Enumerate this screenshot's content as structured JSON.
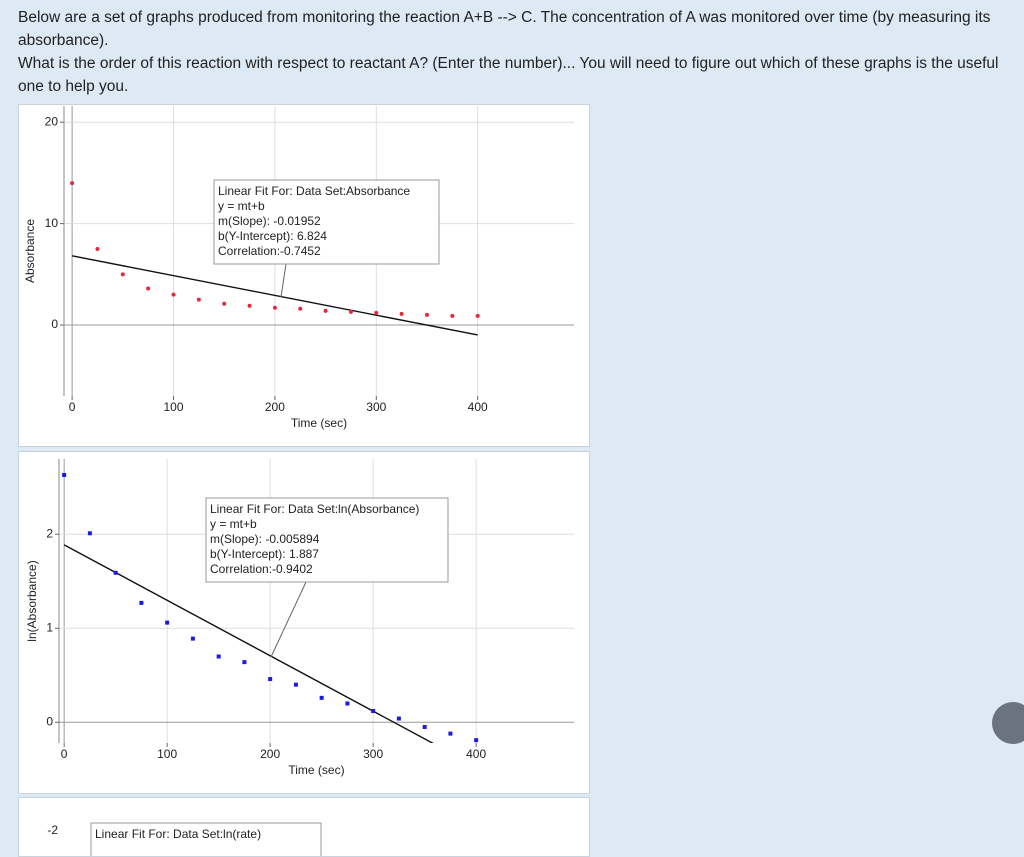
{
  "question": [
    "Below are a set of graphs produced from monitoring the reaction A+B --> C. The concentration of A was monitored over time (by measuring its absorbance).",
    "What is the order of this reaction with respect to reactant A? (Enter the number)... You will need to figure out which of these graphs is the useful one to help you."
  ],
  "chart_data": [
    {
      "type": "scatter",
      "xlabel": "Time (sec)",
      "ylabel": "Absorbance",
      "marker": "circle",
      "x": [
        0,
        25,
        50,
        75,
        100,
        125,
        150,
        175,
        200,
        225,
        250,
        275,
        300,
        325,
        350,
        375,
        400
      ],
      "series": [
        {
          "name": "Absorbance",
          "color": "#e8283a",
          "values": [
            14.0,
            7.5,
            5.0,
            3.6,
            3.0,
            2.5,
            2.1,
            1.9,
            1.7,
            1.6,
            1.4,
            1.3,
            1.2,
            1.1,
            1.0,
            0.9,
            0.9
          ]
        }
      ],
      "xlim": [
        -8,
        495
      ],
      "xticks": [
        0,
        100,
        200,
        300,
        400
      ],
      "ylim": [
        -7,
        21.6
      ],
      "yticks": [
        0,
        10,
        20
      ],
      "grid": true,
      "fit": {
        "title": "Linear Fit For:  Data Set:Absorbance",
        "equation": "y = mt+b",
        "slope_label": "m(Slope): ",
        "slope": -0.01952,
        "intercept_label": "b(Y-Intercept): ",
        "intercept": 6.824,
        "correlation_label": "Correlation:",
        "correlation": -0.7452
      }
    },
    {
      "type": "scatter",
      "xlabel": "Time (sec)",
      "ylabel": "ln(Absorbance)",
      "marker": "square",
      "x": [
        0,
        25,
        50,
        75,
        100,
        125,
        150,
        175,
        200,
        225,
        250,
        275,
        300,
        325,
        350,
        375,
        400
      ],
      "series": [
        {
          "name": "ln(Absorbance)",
          "color": "#1a1ae6",
          "values": [
            2.63,
            2.01,
            1.59,
            1.27,
            1.06,
            0.89,
            0.7,
            0.64,
            0.46,
            0.4,
            0.26,
            0.2,
            0.12,
            0.04,
            -0.05,
            -0.12,
            -0.19
          ]
        }
      ],
      "xlim": [
        -5,
        495
      ],
      "xticks": [
        0,
        100,
        200,
        300,
        400
      ],
      "ylim": [
        -0.22,
        2.8
      ],
      "yticks": [
        0,
        1,
        2
      ],
      "grid": true,
      "fit": {
        "title": "Linear Fit For:  Data Set:ln(Absorbance)",
        "equation": "y = mt+b",
        "slope_label": "m(Slope): ",
        "slope": -0.005894,
        "intercept_label": "b(Y-Intercept): ",
        "intercept": 1.887,
        "correlation_label": "Correlation:",
        "correlation": -0.9402
      }
    },
    {
      "type": "scatter",
      "yticks": [
        -2
      ],
      "fit": {
        "title": "Linear Fit For:  Data Set:ln(rate)"
      }
    }
  ]
}
